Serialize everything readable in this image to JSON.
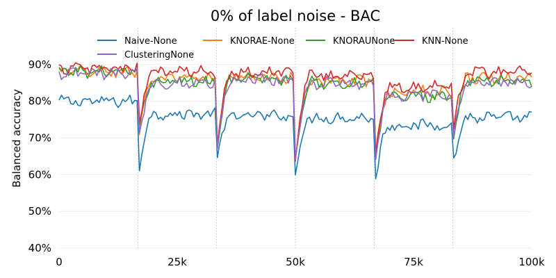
{
  "chart_data": {
    "type": "line",
    "title": "0% of label noise - BAC",
    "xlabel": "",
    "ylabel": "Balanced accuracy",
    "xlim": [
      0,
      100000
    ],
    "ylim": [
      40,
      100
    ],
    "xticks": [
      0,
      25000,
      50000,
      75000,
      100000
    ],
    "xtick_labels": [
      "0",
      "25k",
      "50k",
      "75k",
      "100k"
    ],
    "yticks": [
      40,
      50,
      60,
      70,
      80,
      90
    ],
    "ytick_labels": [
      "40%",
      "50%",
      "60%",
      "70%",
      "80%",
      "90%"
    ],
    "grid": true,
    "legend": "top-center",
    "drift_points": [
      16667,
      33333,
      50000,
      66667,
      83333
    ],
    "series": [
      {
        "name": "Naive-None",
        "color": "#1f77b4",
        "base": [
          80,
          76.5,
          76,
          75.5,
          73.5,
          75.5
        ],
        "drop": [
          59,
          64.5,
          60.5,
          55.5,
          63
        ]
      },
      {
        "name": "KNORAE-None",
        "color": "#ff7f0e",
        "base": [
          88,
          86,
          86.5,
          85.5,
          82.5,
          86.5
        ],
        "drop": [
          69,
          67,
          63.5,
          61,
          69
        ]
      },
      {
        "name": "KNORAUNone",
        "color": "#2ca02c",
        "base": [
          88,
          85.5,
          86,
          85,
          81.5,
          85.5
        ],
        "drop": [
          69,
          67,
          64.5,
          61,
          68.5
        ]
      },
      {
        "name": "KNN-None",
        "color": "#d62728",
        "base": [
          89,
          88,
          88,
          87,
          84,
          88
        ],
        "drop": [
          70,
          67.5,
          65,
          61,
          71
        ]
      },
      {
        "name": "ClusteringNone",
        "color": "#9467bd",
        "base": [
          87.5,
          85,
          86,
          85,
          81.5,
          85
        ],
        "drop": [
          68,
          66,
          64,
          60,
          69
        ]
      }
    ]
  }
}
